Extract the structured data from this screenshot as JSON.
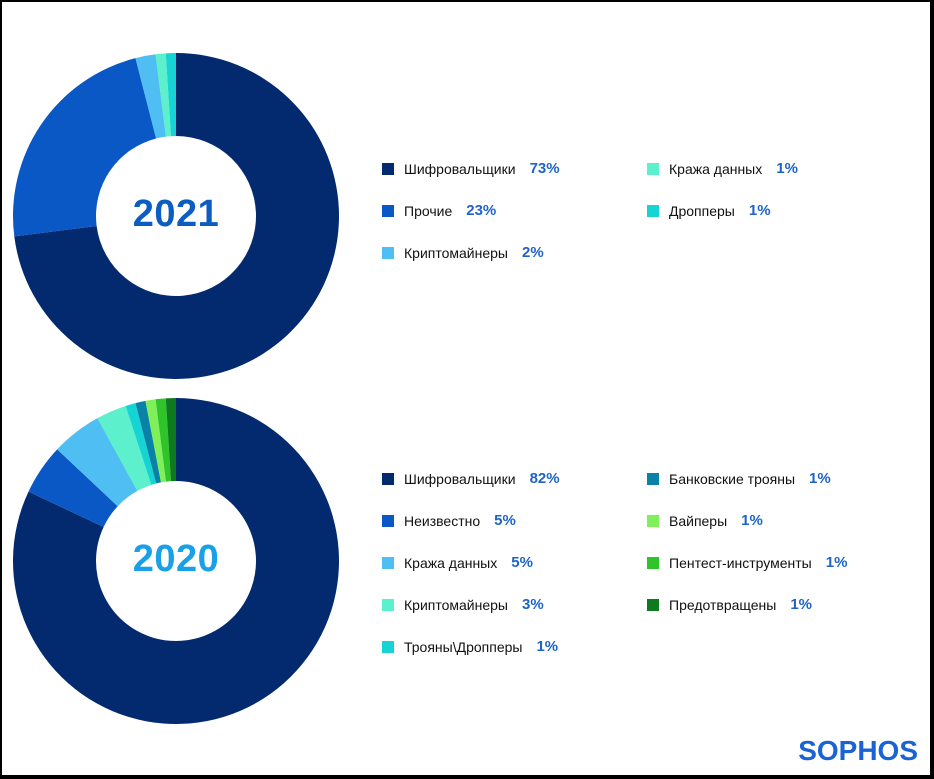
{
  "chart_data": [
    {
      "type": "pie",
      "title": "2021",
      "title_color": "#0b5dc2",
      "series": [
        {
          "name": "Шифровальщики",
          "value": 73,
          "display": "73%",
          "color": "#032a6f"
        },
        {
          "name": "Прочие",
          "value": 23,
          "display": "23%",
          "color": "#0a58c6"
        },
        {
          "name": "Криптомайнеры",
          "value": 2,
          "display": "2%",
          "color": "#4fbff3"
        },
        {
          "name": "Кража данных",
          "value": 1,
          "display": "1%",
          "color": "#5df0cc"
        },
        {
          "name": "Дропперы",
          "value": 1,
          "display": "1%",
          "color": "#16d4d4"
        }
      ],
      "legend_columns": [
        [
          "Шифровальщики",
          "Прочие",
          "Криптомайнеры"
        ],
        [
          "Кража данных",
          "Дропперы"
        ]
      ]
    },
    {
      "type": "pie",
      "title": "2020",
      "title_color": "#1aa0e8",
      "series": [
        {
          "name": "Шифровальщики",
          "value": 82,
          "display": "82%",
          "color": "#032a6f"
        },
        {
          "name": "Неизвестно",
          "value": 5,
          "display": "5%",
          "color": "#0a58c6"
        },
        {
          "name": "Кража данных",
          "value": 5,
          "display": "5%",
          "color": "#4fbff3"
        },
        {
          "name": "Криптомайнеры",
          "value": 3,
          "display": "3%",
          "color": "#5df0cc"
        },
        {
          "name": "Трояны\\Дропперы",
          "value": 1,
          "display": "1%",
          "color": "#16d4d4"
        },
        {
          "name": "Банковские трояны",
          "value": 1,
          "display": "1%",
          "color": "#0a82a8"
        },
        {
          "name": "Вайперы",
          "value": 1,
          "display": "1%",
          "color": "#7ff05a"
        },
        {
          "name": "Пентест-инструменты",
          "value": 1,
          "display": "1%",
          "color": "#2fc42a"
        },
        {
          "name": "Предотвращены",
          "value": 1,
          "display": "1%",
          "color": "#0d7a20"
        }
      ],
      "legend_columns": [
        [
          "Шифровальщики",
          "Неизвестно",
          "Кража данных",
          "Криптомайнеры",
          "Трояны\\Дропперы"
        ],
        [
          "Банковские трояны",
          "Вайперы",
          "Пентест-инструменты",
          "Предотвращены"
        ]
      ]
    }
  ],
  "logo": "SOPHOS"
}
